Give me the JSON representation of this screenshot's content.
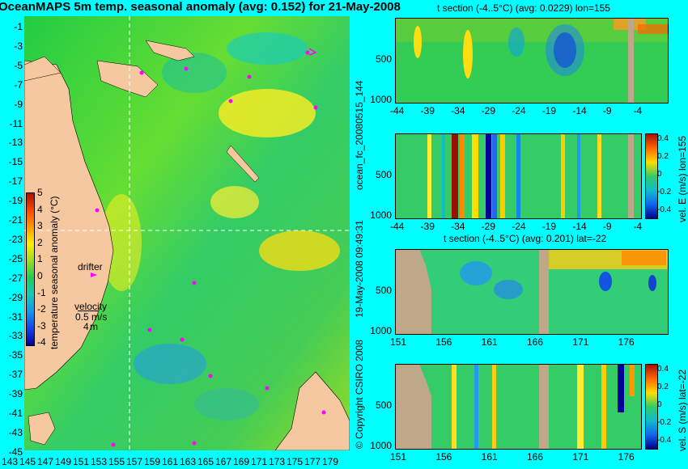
{
  "map": {
    "title": "OceanMAPS 5m temp. seasonal anomaly (avg: 0.152) for 21-May-2008",
    "lat_labels": [
      "-1",
      "-3",
      "-5",
      "-7",
      "-9",
      "-11",
      "-13",
      "-15",
      "-17",
      "-19",
      "-21",
      "-23",
      "-25",
      "-27",
      "-29",
      "-31",
      "-33",
      "-35",
      "-37",
      "-39",
      "-41",
      "-43",
      "-45"
    ],
    "lon_labels": [
      "143",
      "145",
      "147",
      "149",
      "151",
      "153",
      "155",
      "157",
      "159",
      "161",
      "163",
      "165",
      "167",
      "169",
      "171",
      "173",
      "175",
      "177",
      "179"
    ],
    "colorbar_label": "temperature seasonal anomaly (°C)",
    "colorbar_ticks": [
      "5",
      "4",
      "3",
      "2",
      "1",
      "0",
      "-1",
      "-2",
      "-3",
      "-4"
    ],
    "drifter_label": "drifter",
    "velocity_label": "velocity",
    "velocity_value": "0.5 m/s",
    "velocity_scale": "4",
    "velocity_unit": "m",
    "colors": {
      "land": "#f5c8a0",
      "drifter": "#ff00ff",
      "crosshair": "#ffffff"
    }
  },
  "panels": {
    "p1": {
      "title": "t section (-4..5°C) (avg: 0.0229) lon=155",
      "x_ticks": [
        "-44",
        "-39",
        "-34",
        "-29",
        "-24",
        "-19",
        "-14",
        "-9",
        "-4"
      ],
      "y_ticks": [
        "500",
        "1000"
      ]
    },
    "p2": {
      "x_ticks": [
        "-44",
        "-39",
        "-34",
        "-29",
        "-24",
        "-19",
        "-14",
        "-9",
        "-4"
      ],
      "y_ticks": [
        "500",
        "1000"
      ],
      "side_label": "vel. E (m/s) lon=155",
      "cb_ticks": [
        "0.4",
        "0.2",
        "0",
        "-0.2",
        "-0.4"
      ]
    },
    "p3": {
      "title": "t section (-4..5°C) (avg: 0.201) lat=-22",
      "x_ticks": [
        "151",
        "156",
        "161",
        "166",
        "171",
        "176"
      ],
      "y_ticks": [
        "500",
        "1000"
      ]
    },
    "p4": {
      "x_ticks": [
        "151",
        "156",
        "161",
        "166",
        "171",
        "176"
      ],
      "y_ticks": [
        "500",
        "1000"
      ],
      "side_label": "vel. S (m/s) lat=-22",
      "cb_ticks": [
        "0.4",
        "0.2",
        "0",
        "-0.2",
        "-0.4"
      ]
    },
    "vertical_labels": {
      "forecast_id": "ocean_fc_20080515_144",
      "timestamp": "19-May-2008 09:49:31",
      "copyright": "© Copyright CSIRO 2008"
    }
  }
}
